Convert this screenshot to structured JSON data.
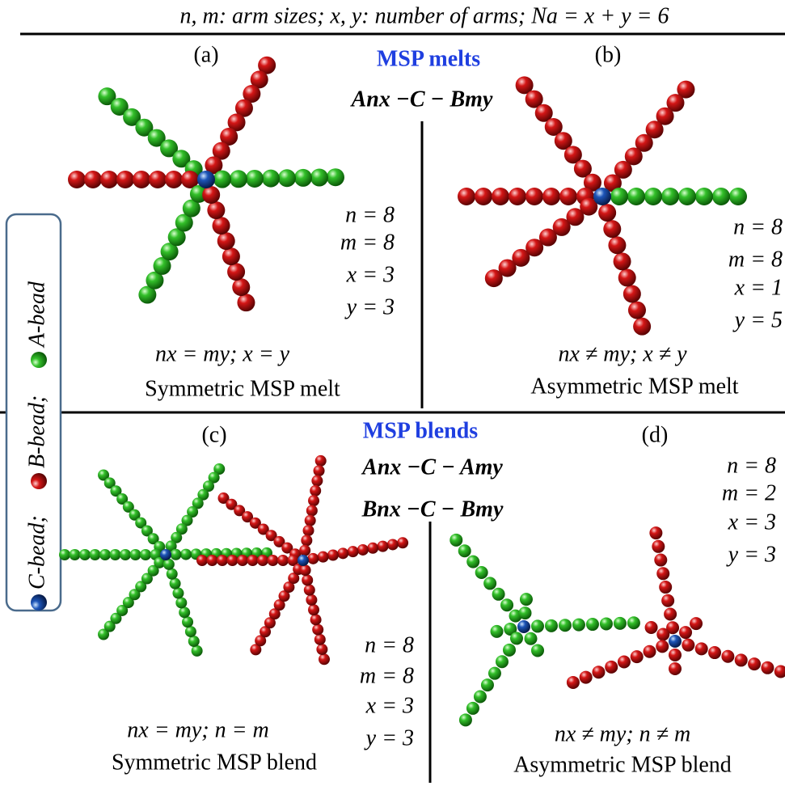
{
  "header": "n, m: arm sizes;  x, y: number of arms;  Na = x + y = 6",
  "legend": [
    "C-bead;",
    "B-bead;",
    "A-bead"
  ],
  "melts": {
    "title": "MSP melts",
    "formula": "Anx −C − Bmy",
    "panels": [
      {
        "label": "(a)",
        "params": [
          "n = 8",
          "m = 8",
          "x = 3",
          "y = 3"
        ],
        "relation": "nx = my; x = y",
        "caption": "Symmetric MSP melt"
      },
      {
        "label": "(b)",
        "params": [
          "n = 8",
          "m = 8",
          "x = 1",
          "y = 5"
        ],
        "relation": "nx ≠ my; x ≠ y",
        "caption": "Asymmetric MSP melt"
      }
    ]
  },
  "blends": {
    "title": "MSP blends",
    "formulas": [
      "Anx −C − Amy",
      "Bnx −C − Bmy"
    ],
    "panels": [
      {
        "label": "(c)",
        "params": [
          "n = 8",
          "m = 8",
          "x = 3",
          "y = 3"
        ],
        "relation": "nx = my; n = m",
        "caption": "Symmetric MSP blend"
      },
      {
        "label": "(d)",
        "params": [
          "n = 8",
          "m = 2",
          "x = 3",
          "y = 3"
        ],
        "relation": "nx ≠ my; n ≠ m",
        "caption": "Asymmetric MSP blend"
      }
    ]
  }
}
